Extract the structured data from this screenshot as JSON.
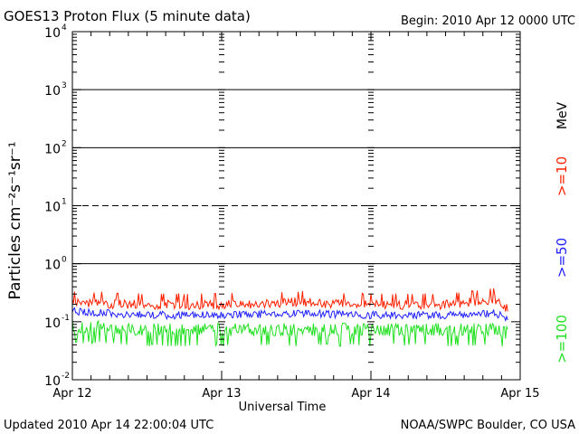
{
  "title": "GOES13 Proton Flux (5 minute data)",
  "begin_text": "Begin: 2010 Apr 12 0000 UTC",
  "updated_text": "Updated 2010 Apr 14 22:00:04 UTC",
  "credit_text": "NOAA/SWPC Boulder, CO USA",
  "chart_data": {
    "type": "line",
    "title": "GOES13 Proton Flux (5 minute data)",
    "xlabel": "Universal Time",
    "ylabel": "Particles cm⁻²s⁻¹sr⁻¹",
    "y_scale": "log",
    "ylim": [
      0.01,
      10000
    ],
    "y_ticks": [
      {
        "value": 0.01,
        "base": "10",
        "exp": "-2"
      },
      {
        "value": 0.1,
        "base": "10",
        "exp": "-1"
      },
      {
        "value": 1,
        "base": "10",
        "exp": "0"
      },
      {
        "value": 10,
        "base": "10",
        "exp": "1"
      },
      {
        "value": 100,
        "base": "10",
        "exp": "2"
      },
      {
        "value": 1000,
        "base": "10",
        "exp": "3"
      },
      {
        "value": 10000,
        "base": "10",
        "exp": "4"
      }
    ],
    "x_ticks": [
      "Apr 12",
      "Apr 13",
      "Apr 14",
      "Apr 15"
    ],
    "xlim": [
      "2010-04-12T00:00Z",
      "2010-04-15T00:00Z"
    ],
    "threshold_lines": [
      {
        "value": 1,
        "style": "solid"
      },
      {
        "value": 10,
        "style": "dashed"
      },
      {
        "value": 100,
        "style": "solid"
      },
      {
        "value": 1000,
        "style": "solid"
      }
    ],
    "series": [
      {
        "name": ">=10",
        "color": "#ff2000",
        "x": [
          "2010-04-12T00:00Z",
          "2010-04-12T12:00Z",
          "2010-04-13T00:00Z",
          "2010-04-13T12:00Z",
          "2010-04-14T00:00Z",
          "2010-04-14T12:00Z",
          "2010-04-14T20:00Z",
          "2010-04-14T22:00Z"
        ],
        "y": [
          0.22,
          0.2,
          0.2,
          0.22,
          0.2,
          0.2,
          0.25,
          0.17
        ]
      },
      {
        "name": ">=50",
        "color": "#2020ff",
        "x": [
          "2010-04-12T00:00Z",
          "2010-04-12T12:00Z",
          "2010-04-13T00:00Z",
          "2010-04-13T12:00Z",
          "2010-04-14T00:00Z",
          "2010-04-14T12:00Z",
          "2010-04-14T20:00Z",
          "2010-04-14T22:00Z"
        ],
        "y": [
          0.15,
          0.13,
          0.13,
          0.14,
          0.13,
          0.13,
          0.14,
          0.11
        ]
      },
      {
        "name": ">=100",
        "color": "#20e020",
        "x": [
          "2010-04-12T00:00Z",
          "2010-04-12T12:00Z",
          "2010-04-13T00:00Z",
          "2010-04-13T12:00Z",
          "2010-04-14T00:00Z",
          "2010-04-14T12:00Z",
          "2010-04-14T20:00Z",
          "2010-04-14T22:00Z"
        ],
        "y": [
          0.08,
          0.07,
          0.07,
          0.07,
          0.07,
          0.07,
          0.07,
          0.06
        ]
      }
    ],
    "legend_unit": "MeV",
    "legend_position": "right (vertical)",
    "grid": false
  }
}
